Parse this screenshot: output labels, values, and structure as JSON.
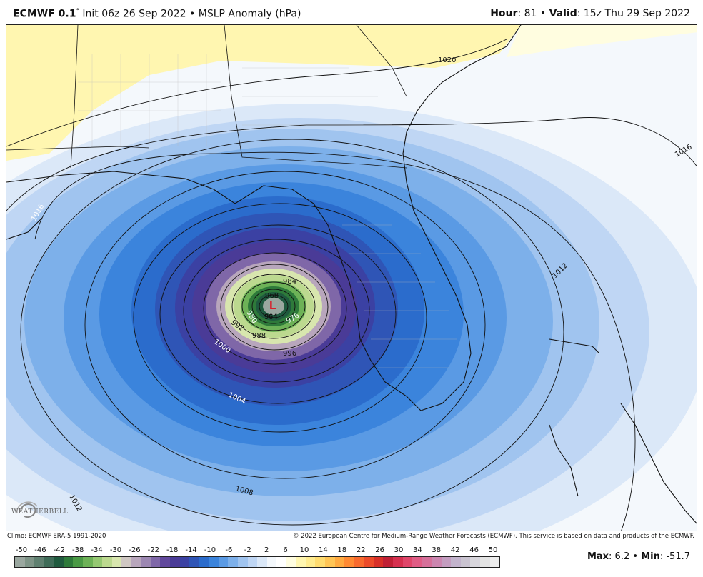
{
  "header": {
    "model": "ECMWF 0.1",
    "degree": "°",
    "init": "Init 06z 26 Sep 2022",
    "sep": "•",
    "product": "MSLP Anomaly (hPa)",
    "hour_label": "Hour",
    "hour_value": ": 81",
    "valid_label": "Valid",
    "valid_value": ": 15z Thu 29 Sep 2022"
  },
  "footer": {
    "climo": "Climo: ECMWF ERA-5 1991-2020",
    "copyright": "© 2022 European Centre for Medium-Range Weather Forecasts (ECMWF). This service is based on data and products of the ECMWF."
  },
  "stats": {
    "max_label": "Max",
    "max_value": ": 6.2",
    "sep": "•",
    "min_label": "Min",
    "min_value": ": -51.7"
  },
  "logo": {
    "text": "WEATHERBELL"
  },
  "low_marker": {
    "symbol": "L",
    "pressure": "964"
  },
  "isobar_labels": [
    "1020",
    "1016",
    "1016",
    "1012",
    "1012",
    "1008",
    "1004",
    "1000",
    "996",
    "992",
    "988",
    "984",
    "980",
    "976",
    "968"
  ],
  "colorbar": {
    "ticks": [
      "-50",
      "-46",
      "-42",
      "-38",
      "-34",
      "-30",
      "-26",
      "-22",
      "-18",
      "-14",
      "-10",
      "-6",
      "-2",
      "2",
      "6",
      "10",
      "14",
      "18",
      "22",
      "26",
      "30",
      "34",
      "38",
      "42",
      "46",
      "50"
    ],
    "colors": [
      "#9aa79f",
      "#7e9487",
      "#5f8070",
      "#3f6c58",
      "#1f5a3e",
      "#2e7a3a",
      "#4a9a45",
      "#6db257",
      "#95c872",
      "#bcd98f",
      "#d8e6ae",
      "#cfc7c2",
      "#b8a6bc",
      "#9c87b2",
      "#7f67a8",
      "#61489c",
      "#4a3b97",
      "#3b41a3",
      "#2f55b6",
      "#2b6ccc",
      "#3b84dc",
      "#5a9ae4",
      "#7db0ea",
      "#a0c4ef",
      "#bfd6f4",
      "#dbe8f8",
      "#f4f8fc",
      "#ffffff",
      "#fffde0",
      "#fff6b0",
      "#ffec90",
      "#ffdc70",
      "#ffc555",
      "#ffaa40",
      "#ff8a33",
      "#f86a2e",
      "#ec4b2a",
      "#d83028",
      "#c02035",
      "#d6304f",
      "#e0466a",
      "#e05c85",
      "#d6709a",
      "#cc86b0",
      "#c49dc0",
      "#c2b3cc",
      "#c9c3d0",
      "#d8d6dc",
      "#e4e4e4",
      "#eeeeee"
    ]
  },
  "chart_data": {
    "type": "map",
    "title": "ECMWF 0.1° Init 06z 26 Sep 2022 • MSLP Anomaly (hPa)",
    "field": "MSLP Anomaly (hPa)",
    "valid": "15z Thu 29 Sep 2022",
    "forecast_hour": 81,
    "max": 6.2,
    "min": -51.7,
    "low_center_pressure_hPa": 964,
    "isobars_hPa": [
      964,
      968,
      976,
      980,
      984,
      988,
      992,
      996,
      1000,
      1004,
      1008,
      1012,
      1016,
      1020
    ],
    "colorbar_range": [
      -50,
      50
    ]
  }
}
